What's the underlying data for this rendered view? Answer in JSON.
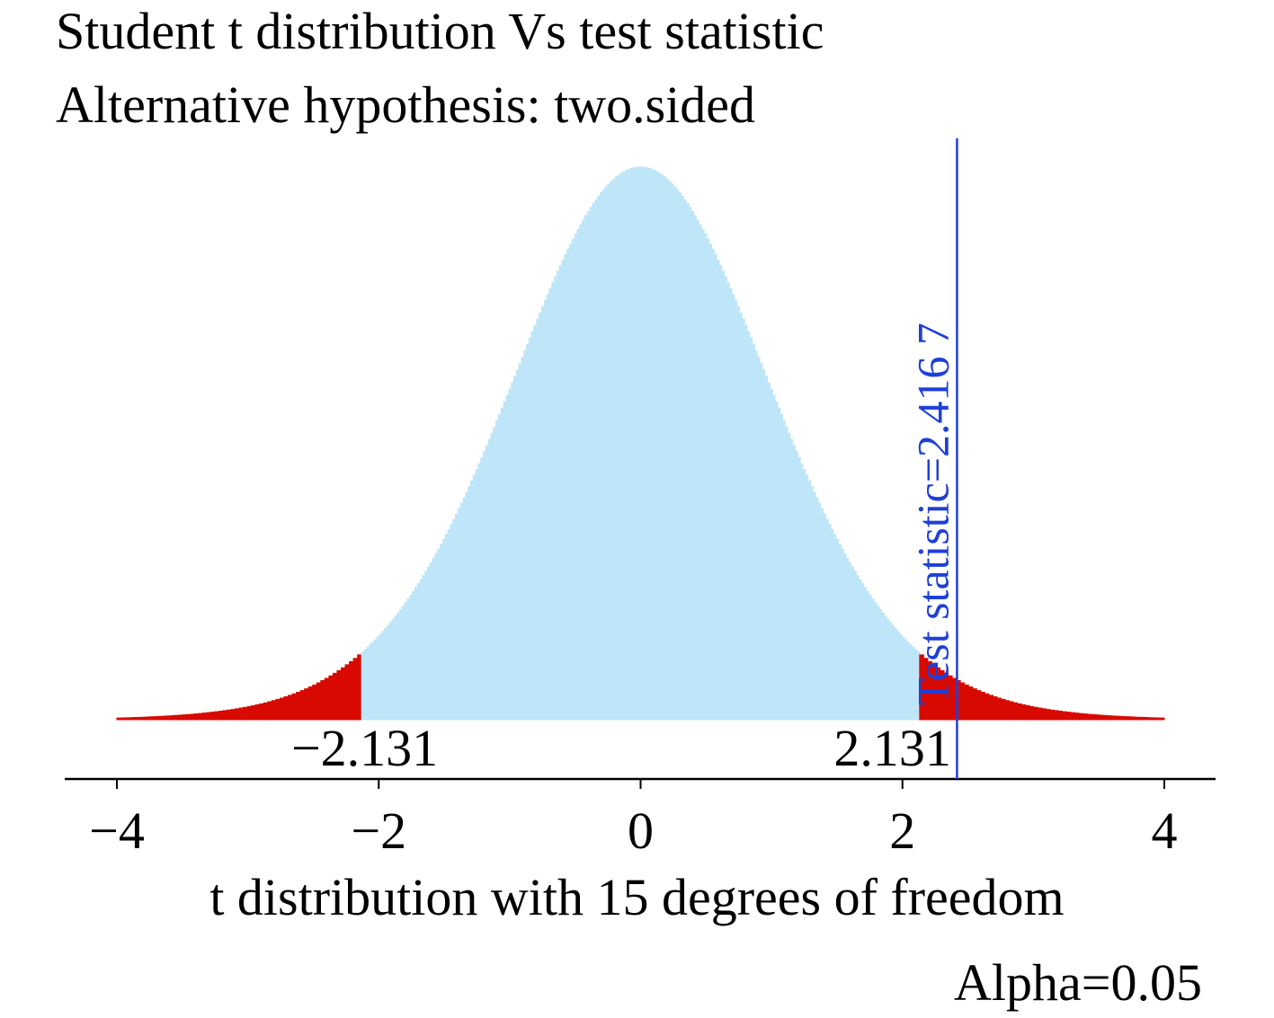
{
  "chart_data": {
    "type": "area",
    "title": "Student t distribution Vs test statistic",
    "subtitle": "Alternative hypothesis: two.sided",
    "xlabel": "t distribution with 15 degrees of freedom",
    "ylabel": "",
    "degrees_of_freedom": 15,
    "xlim": [
      -4,
      4
    ],
    "xticks": [
      -4,
      -2,
      0,
      2,
      4
    ],
    "xtick_labels": [
      "−4",
      "−2",
      "0",
      "2",
      "4"
    ],
    "critical_values": [
      -2.131,
      2.131
    ],
    "critical_labels": [
      "−2.131",
      "2.131"
    ],
    "test_statistic": 2.4167,
    "test_statistic_label": "Test statistic=2.416 7",
    "alpha_label": "Alpha=0.05",
    "colors": {
      "acceptance_region": "#bee6f8",
      "rejection_region": "#d80a00",
      "test_statistic_line": "#1f3fd8",
      "axis": "#000000"
    },
    "grid": false,
    "legend": "none"
  }
}
